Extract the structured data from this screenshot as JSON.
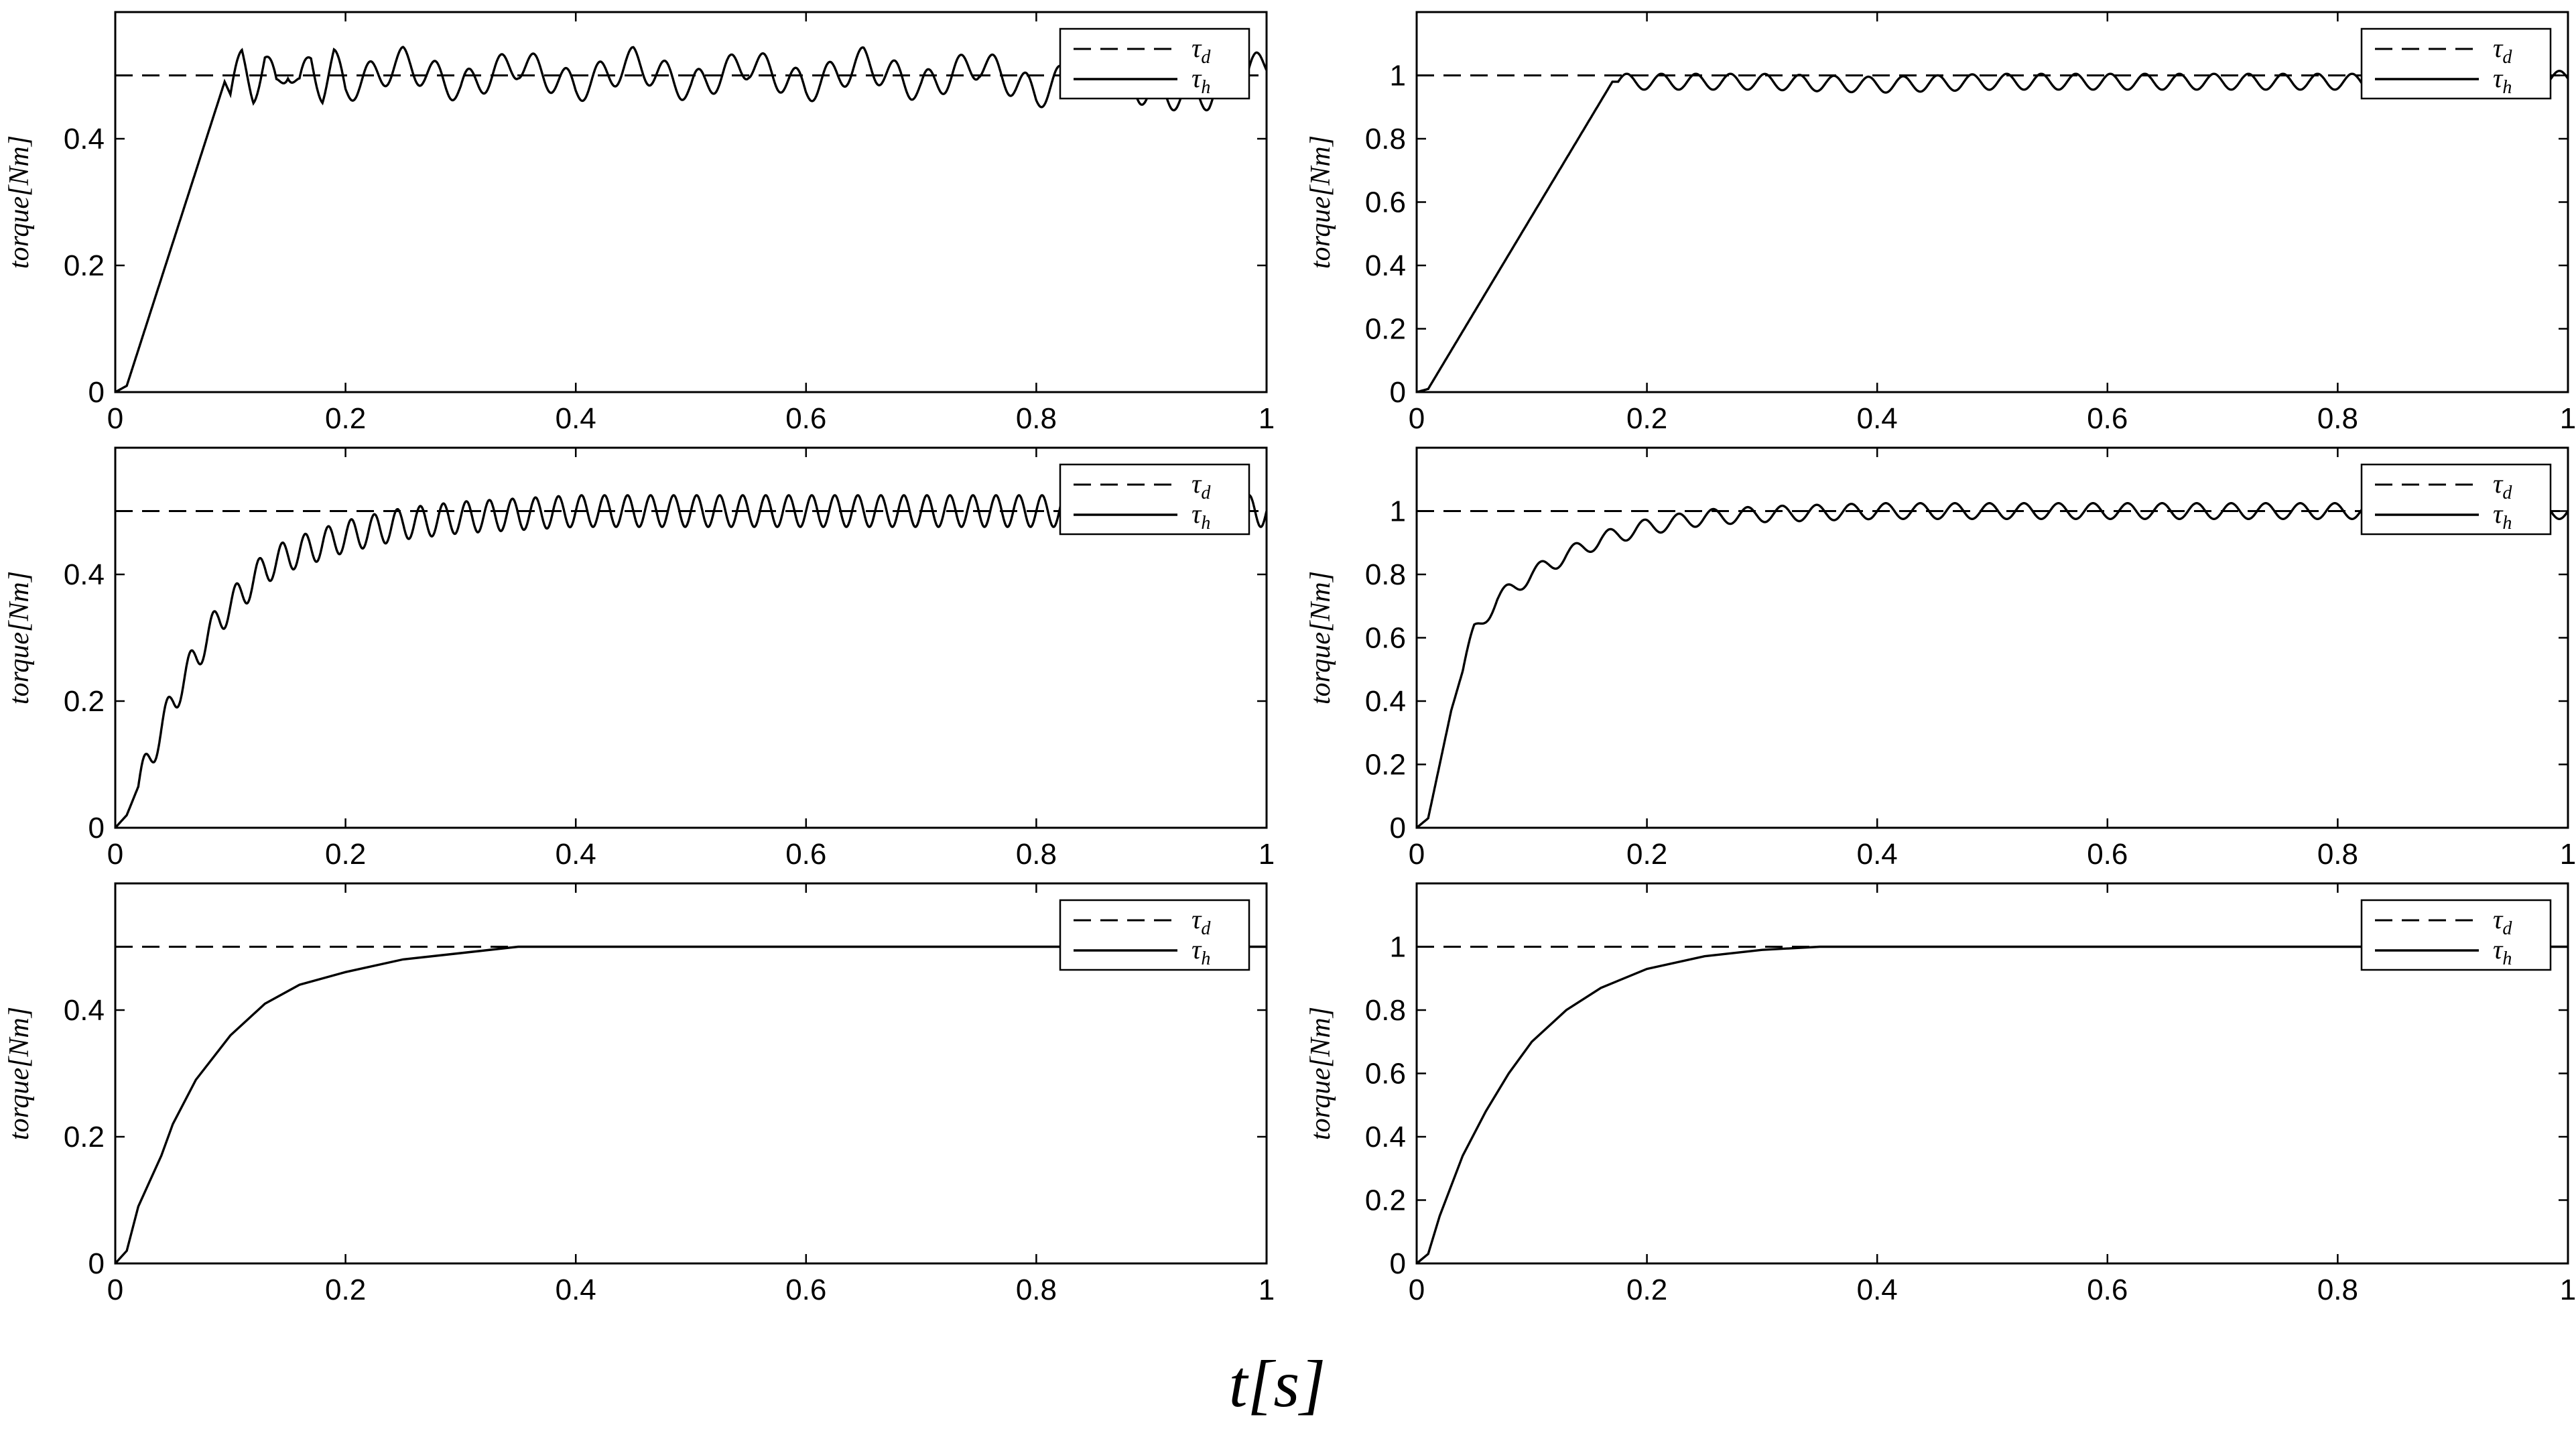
{
  "figure": {
    "xlabel": "t[s]"
  },
  "chart_data": [
    {
      "type": "line",
      "id": "p1",
      "ylabel": "torque[Nm]",
      "xlim": [
        0,
        1
      ],
      "ylim": [
        0,
        0.6
      ],
      "xticks": [
        0,
        0.2,
        0.4,
        0.6,
        0.8,
        1
      ],
      "xtick_labels": [
        "0",
        "0.2",
        "0.4",
        "0.6",
        "0.8",
        "1"
      ],
      "yticks": [
        0,
        0.2,
        0.4
      ],
      "ytick_labels": [
        "0",
        "0.2",
        "0.4"
      ],
      "legend": {
        "position": "top-right",
        "entries": [
          {
            "symbol": "τ",
            "sub": "d",
            "style": "dashed"
          },
          {
            "symbol": "τ",
            "sub": "h",
            "style": "solid"
          }
        ]
      },
      "series": [
        {
          "key": "tau_d",
          "style": "dashed",
          "x": [
            0,
            1
          ],
          "y": [
            0.5,
            0.5
          ]
        },
        {
          "key": "tau_h",
          "style": "solid",
          "x": [
            0,
            0.01,
            0.095,
            0.1,
            0.11,
            0.12,
            0.13,
            0.14,
            0.15,
            0.16,
            0.17,
            0.18,
            0.19,
            0.2,
            0.25,
            0.3,
            0.35,
            0.4,
            0.45,
            0.5,
            0.55,
            0.6,
            0.65,
            0.7,
            0.75,
            0.8,
            0.85,
            0.9,
            0.95,
            1.0
          ],
          "y": [
            0,
            0.01,
            0.49,
            0.47,
            0.52,
            0.48,
            0.52,
            0.48,
            0.52,
            0.48,
            0.52,
            0.48,
            0.52,
            0.48,
            0.52,
            0.48,
            0.52,
            0.48,
            0.52,
            0.48,
            0.52,
            0.48,
            0.52,
            0.48,
            0.52,
            0.47,
            0.52,
            0.47,
            0.47,
            0.52
          ],
          "oscillation": {
            "amplitude": 0.025,
            "period": 0.0285,
            "start": 0.1
          }
        }
      ]
    },
    {
      "type": "line",
      "id": "p2",
      "ylabel": "torque[Nm]",
      "xlim": [
        0,
        1
      ],
      "ylim": [
        0,
        1.2
      ],
      "xticks": [
        0,
        0.2,
        0.4,
        0.6,
        0.8,
        1
      ],
      "xtick_labels": [
        "0",
        "0.2",
        "0.4",
        "0.6",
        "0.8",
        "1"
      ],
      "yticks": [
        0,
        0.2,
        0.4,
        0.6,
        0.8,
        1
      ],
      "ytick_labels": [
        "0",
        "0.2",
        "0.4",
        "0.6",
        "0.8",
        "1"
      ],
      "legend": {
        "position": "top-right",
        "entries": [
          {
            "symbol": "τ",
            "sub": "d",
            "style": "dashed"
          },
          {
            "symbol": "τ",
            "sub": "h",
            "style": "solid"
          }
        ]
      },
      "series": [
        {
          "key": "tau_d",
          "style": "dashed",
          "x": [
            0,
            1
          ],
          "y": [
            1,
            1
          ]
        },
        {
          "key": "tau_h",
          "style": "solid",
          "x": [
            0,
            0.01,
            0.17,
            0.2,
            0.3,
            0.4,
            0.5,
            0.6,
            0.7,
            0.8,
            0.9,
            1.0
          ],
          "y": [
            0,
            0.01,
            0.98,
            0.98,
            0.98,
            0.97,
            0.98,
            0.98,
            0.98,
            0.98,
            0.98,
            0.99
          ],
          "oscillation": {
            "amplitude": 0.025,
            "period": 0.03,
            "start": 0.175
          }
        }
      ]
    },
    {
      "type": "line",
      "id": "p3",
      "ylabel": "torque[Nm]",
      "xlim": [
        0,
        1
      ],
      "ylim": [
        0,
        0.6
      ],
      "xticks": [
        0,
        0.2,
        0.4,
        0.6,
        0.8,
        1
      ],
      "xtick_labels": [
        "0",
        "0.2",
        "0.4",
        "0.6",
        "0.8",
        "1"
      ],
      "yticks": [
        0,
        0.2,
        0.4
      ],
      "ytick_labels": [
        "0",
        "0.2",
        "0.4"
      ],
      "legend": {
        "position": "top-right",
        "entries": [
          {
            "symbol": "τ",
            "sub": "d",
            "style": "dashed"
          },
          {
            "symbol": "τ",
            "sub": "h",
            "style": "solid"
          }
        ]
      },
      "series": [
        {
          "key": "tau_d",
          "style": "dashed",
          "x": [
            0,
            1
          ],
          "y": [
            0.5,
            0.5
          ]
        },
        {
          "key": "tau_h",
          "style": "solid",
          "x": [
            0,
            0.01,
            0.03,
            0.05,
            0.07,
            0.09,
            0.11,
            0.13,
            0.15,
            0.2,
            0.25,
            0.3,
            0.4,
            0.5,
            0.6,
            0.7,
            0.8,
            0.9,
            1.0
          ],
          "y": [
            0,
            0.02,
            0.11,
            0.2,
            0.27,
            0.33,
            0.37,
            0.41,
            0.43,
            0.46,
            0.48,
            0.49,
            0.5,
            0.5,
            0.5,
            0.5,
            0.5,
            0.5,
            0.5
          ],
          "oscillation": {
            "amplitude": 0.025,
            "period": 0.02,
            "start": 0.02
          }
        }
      ]
    },
    {
      "type": "line",
      "id": "p4",
      "ylabel": "torque[Nm]",
      "xlim": [
        0,
        1
      ],
      "ylim": [
        0,
        1.2
      ],
      "xticks": [
        0,
        0.2,
        0.4,
        0.6,
        0.8,
        1
      ],
      "xtick_labels": [
        "0",
        "0.2",
        "0.4",
        "0.6",
        "0.8",
        "1"
      ],
      "yticks": [
        0,
        0.2,
        0.4,
        0.6,
        0.8,
        1
      ],
      "ytick_labels": [
        "0",
        "0.2",
        "0.4",
        "0.6",
        "0.8",
        "1"
      ],
      "legend": {
        "position": "top-right",
        "entries": [
          {
            "symbol": "τ",
            "sub": "d",
            "style": "dashed"
          },
          {
            "symbol": "τ",
            "sub": "h",
            "style": "solid"
          }
        ]
      },
      "series": [
        {
          "key": "tau_d",
          "style": "dashed",
          "x": [
            0,
            1
          ],
          "y": [
            1,
            1
          ]
        },
        {
          "key": "tau_h",
          "style": "solid",
          "x": [
            0,
            0.01,
            0.03,
            0.05,
            0.07,
            0.1,
            0.13,
            0.16,
            0.2,
            0.25,
            0.3,
            0.4,
            0.5,
            0.6,
            0.7,
            0.8,
            0.9,
            1.0
          ],
          "y": [
            0,
            0.03,
            0.37,
            0.62,
            0.72,
            0.8,
            0.86,
            0.91,
            0.95,
            0.98,
            0.99,
            1.0,
            1.0,
            1.0,
            1.0,
            1.0,
            1.0,
            1.0
          ],
          "oscillation": {
            "amplitude": 0.025,
            "period": 0.03,
            "start": 0.04
          }
        }
      ]
    },
    {
      "type": "line",
      "id": "p5",
      "ylabel": "torque[Nm]",
      "xlim": [
        0,
        1
      ],
      "ylim": [
        0,
        0.6
      ],
      "xticks": [
        0,
        0.2,
        0.4,
        0.6,
        0.8,
        1
      ],
      "xtick_labels": [
        "0",
        "0.2",
        "0.4",
        "0.6",
        "0.8",
        "1"
      ],
      "yticks": [
        0,
        0.2,
        0.4
      ],
      "ytick_labels": [
        "0",
        "0.2",
        "0.4"
      ],
      "legend": {
        "position": "top-right",
        "entries": [
          {
            "symbol": "τ",
            "sub": "d",
            "style": "dashed"
          },
          {
            "symbol": "τ",
            "sub": "h",
            "style": "solid"
          }
        ]
      },
      "series": [
        {
          "key": "tau_d",
          "style": "dashed",
          "x": [
            0,
            1
          ],
          "y": [
            0.5,
            0.5
          ]
        },
        {
          "key": "tau_h",
          "style": "solid",
          "x": [
            0,
            0.01,
            0.02,
            0.03,
            0.04,
            0.05,
            0.07,
            0.1,
            0.13,
            0.16,
            0.2,
            0.25,
            0.3,
            0.35,
            0.4,
            0.5,
            0.6,
            0.7,
            0.8,
            0.9,
            1.0
          ],
          "y": [
            0,
            0.02,
            0.09,
            0.13,
            0.17,
            0.22,
            0.29,
            0.36,
            0.41,
            0.44,
            0.46,
            0.48,
            0.49,
            0.5,
            0.5,
            0.5,
            0.5,
            0.5,
            0.5,
            0.5,
            0.5
          ]
        }
      ]
    },
    {
      "type": "line",
      "id": "p6",
      "ylabel": "torque[Nm]",
      "xlim": [
        0,
        1
      ],
      "ylim": [
        0,
        1.2
      ],
      "xticks": [
        0,
        0.2,
        0.4,
        0.6,
        0.8,
        1
      ],
      "xtick_labels": [
        "0",
        "0.2",
        "0.4",
        "0.6",
        "0.8",
        "1"
      ],
      "yticks": [
        0,
        0.2,
        0.4,
        0.6,
        0.8,
        1
      ],
      "ytick_labels": [
        "0",
        "0.2",
        "0.4",
        "0.6",
        "0.8",
        "1"
      ],
      "legend": {
        "position": "top-right",
        "entries": [
          {
            "symbol": "τ",
            "sub": "d",
            "style": "dashed"
          },
          {
            "symbol": "τ",
            "sub": "h",
            "style": "solid"
          }
        ]
      },
      "series": [
        {
          "key": "tau_d",
          "style": "dashed",
          "x": [
            0,
            1
          ],
          "y": [
            1,
            1
          ]
        },
        {
          "key": "tau_h",
          "style": "solid",
          "x": [
            0,
            0.01,
            0.02,
            0.04,
            0.06,
            0.08,
            0.1,
            0.13,
            0.16,
            0.2,
            0.25,
            0.3,
            0.35,
            0.4,
            0.5,
            0.6,
            0.7,
            0.8,
            0.9,
            1.0
          ],
          "y": [
            0,
            0.03,
            0.15,
            0.34,
            0.48,
            0.6,
            0.7,
            0.8,
            0.87,
            0.93,
            0.97,
            0.99,
            1.0,
            1.0,
            1.0,
            1.0,
            1.0,
            1.0,
            1.0,
            1.0
          ]
        }
      ]
    }
  ]
}
